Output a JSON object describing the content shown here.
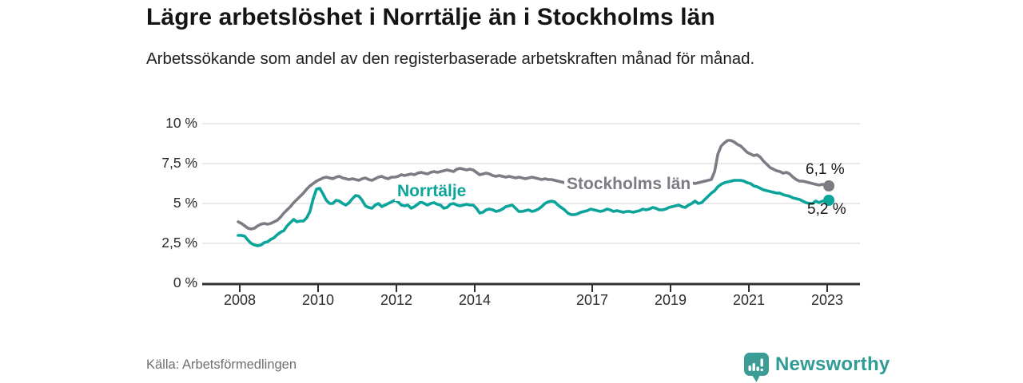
{
  "header": {
    "title": "Lägre arbetslöshet i Norrtälje än i Stockholms län",
    "subtitle": "Arbetssökande som andel av den registerbaserade arbetskraften månad för månad."
  },
  "footer": {
    "source": "Källa: Arbetsförmedlingen",
    "brand": "Newsworthy",
    "brand_icon": "newsworthy-speech-bubble-bar-chart-icon",
    "brand_color": "#3b9c96"
  },
  "chart_data": {
    "type": "line",
    "title": "Lägre arbetslöshet i Norrtälje än i Stockholms län",
    "subtitle": "Arbetssökande som andel av den registerbaserade arbetskraften månad för månad.",
    "unit": "%",
    "frequency": "monthly",
    "x_start": "2008-01",
    "x_end": "2023-02",
    "ylim": [
      0,
      10
    ],
    "ytick_values": [
      0,
      2.5,
      5,
      7.5,
      10
    ],
    "ytick_labels": [
      "0 %",
      "2,5 %",
      "5 %",
      "7,5 %",
      "10 %"
    ],
    "xtick_years": [
      2008,
      2010,
      2012,
      2014,
      2017,
      2019,
      2021,
      2023
    ],
    "grid": "horizontal",
    "legend_position": "inline-labels",
    "colors": {
      "grid": "#dcdcdc",
      "axis": "#2f2f2f"
    },
    "series": [
      {
        "name": "Stockholms län",
        "color": "#7b7c84",
        "end_label": "6,1 %",
        "end_value": 6.1,
        "values": [
          3.85,
          3.75,
          3.6,
          3.45,
          3.4,
          3.45,
          3.6,
          3.7,
          3.75,
          3.7,
          3.75,
          3.85,
          3.95,
          4.15,
          4.4,
          4.6,
          4.8,
          5.05,
          5.25,
          5.45,
          5.65,
          5.9,
          6.1,
          6.25,
          6.4,
          6.5,
          6.6,
          6.65,
          6.6,
          6.55,
          6.65,
          6.7,
          6.6,
          6.55,
          6.5,
          6.55,
          6.5,
          6.45,
          6.55,
          6.6,
          6.5,
          6.45,
          6.55,
          6.65,
          6.7,
          6.6,
          6.55,
          6.65,
          6.65,
          6.7,
          6.8,
          6.75,
          6.8,
          6.85,
          6.8,
          6.9,
          6.95,
          6.9,
          6.85,
          6.95,
          7.0,
          6.95,
          7.0,
          7.05,
          7.1,
          7.05,
          7.0,
          7.15,
          7.2,
          7.15,
          7.1,
          7.15,
          7.1,
          6.95,
          6.8,
          6.85,
          6.9,
          6.85,
          6.75,
          6.7,
          6.75,
          6.7,
          6.65,
          6.7,
          6.65,
          6.6,
          6.65,
          6.6,
          6.55,
          6.6,
          6.65,
          6.6,
          6.55,
          6.5,
          6.55,
          6.5,
          6.5,
          6.45,
          6.4,
          6.35,
          6.3,
          6.35,
          6.4,
          6.35,
          6.3,
          6.25,
          6.2,
          6.25,
          6.25,
          6.3,
          6.25,
          6.2,
          6.2,
          6.25,
          6.3,
          6.25,
          6.2,
          6.15,
          6.2,
          6.25,
          6.2,
          6.15,
          6.2,
          6.25,
          6.2,
          6.15,
          6.2,
          6.25,
          6.2,
          6.15,
          6.2,
          6.25,
          6.25,
          6.2,
          6.25,
          6.3,
          6.25,
          6.3,
          6.35,
          6.3,
          6.25,
          6.3,
          6.35,
          6.4,
          6.45,
          6.5,
          7.0,
          8.1,
          8.6,
          8.8,
          8.95,
          8.95,
          8.85,
          8.7,
          8.6,
          8.4,
          8.2,
          8.1,
          8.0,
          8.05,
          7.9,
          7.65,
          7.45,
          7.25,
          7.15,
          7.05,
          7.0,
          6.9,
          6.95,
          6.85,
          6.65,
          6.5,
          6.4,
          6.4,
          6.35,
          6.3,
          6.25,
          6.2,
          6.15,
          6.2,
          6.15,
          6.1
        ]
      },
      {
        "name": "Norrtälje",
        "color": "#0ba49b",
        "end_label": "5,2 %",
        "end_value": 5.2,
        "values": [
          3.0,
          3.0,
          2.95,
          2.7,
          2.5,
          2.4,
          2.35,
          2.4,
          2.55,
          2.6,
          2.75,
          2.85,
          3.05,
          3.2,
          3.3,
          3.6,
          3.8,
          4.0,
          3.85,
          3.9,
          3.9,
          4.1,
          4.5,
          5.3,
          5.9,
          5.95,
          5.6,
          5.2,
          5.0,
          5.0,
          5.2,
          5.15,
          5.0,
          4.9,
          5.05,
          5.3,
          5.5,
          5.45,
          5.2,
          4.85,
          4.75,
          4.7,
          4.9,
          5.0,
          4.8,
          4.9,
          5.0,
          5.1,
          5.2,
          5.1,
          4.9,
          4.85,
          4.9,
          4.7,
          4.8,
          4.95,
          5.1,
          5.0,
          4.9,
          5.0,
          5.05,
          4.95,
          4.9,
          4.7,
          4.75,
          4.95,
          5.0,
          4.9,
          4.85,
          4.9,
          4.95,
          4.9,
          4.9,
          4.7,
          4.4,
          4.45,
          4.6,
          4.65,
          4.6,
          4.5,
          4.55,
          4.65,
          4.8,
          4.85,
          4.9,
          4.7,
          4.5,
          4.5,
          4.55,
          4.6,
          4.5,
          4.55,
          4.65,
          4.8,
          5.0,
          5.1,
          5.15,
          5.1,
          4.9,
          4.75,
          4.6,
          4.4,
          4.3,
          4.3,
          4.35,
          4.45,
          4.5,
          4.55,
          4.65,
          4.6,
          4.55,
          4.5,
          4.55,
          4.65,
          4.6,
          4.5,
          4.55,
          4.5,
          4.45,
          4.5,
          4.5,
          4.45,
          4.5,
          4.55,
          4.65,
          4.6,
          4.65,
          4.75,
          4.7,
          4.6,
          4.6,
          4.65,
          4.75,
          4.8,
          4.85,
          4.9,
          4.8,
          4.75,
          4.9,
          5.0,
          5.15,
          5.0,
          5.05,
          5.25,
          5.45,
          5.65,
          5.8,
          6.05,
          6.2,
          6.3,
          6.35,
          6.4,
          6.45,
          6.45,
          6.45,
          6.4,
          6.3,
          6.25,
          6.1,
          6.05,
          5.95,
          5.85,
          5.8,
          5.75,
          5.7,
          5.65,
          5.65,
          5.55,
          5.5,
          5.45,
          5.35,
          5.3,
          5.25,
          5.15,
          5.05,
          5.0,
          5.0,
          5.15,
          5.05,
          5.15,
          5.15,
          5.2
        ]
      }
    ]
  }
}
